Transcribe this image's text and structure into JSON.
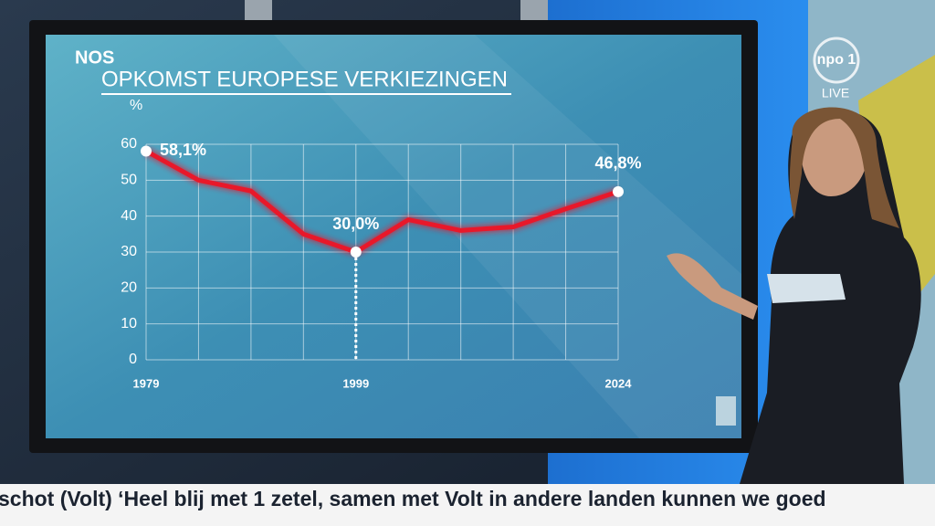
{
  "chart_data": {
    "type": "line",
    "brand": "NOS",
    "title": "OPKOMST EUROPESE VERKIEZINGEN",
    "y_label": "%",
    "x": [
      1979,
      1984,
      1989,
      1994,
      1999,
      2004,
      2009,
      2014,
      2019,
      2024
    ],
    "values": [
      58.1,
      50,
      47,
      35,
      30.0,
      39,
      36,
      37,
      42,
      46.8
    ],
    "value_labels": [
      "58,1%",
      null,
      null,
      null,
      "30,0%",
      null,
      null,
      null,
      null,
      "46,8%"
    ],
    "color": "#e8182a",
    "xlim": [
      1979,
      2024
    ],
    "xticks": [
      1979,
      1999,
      2024
    ],
    "ylim": [
      0,
      60
    ],
    "yticks": [
      0,
      10,
      20,
      30,
      40,
      50,
      60
    ],
    "grid": true
  },
  "broadcast": {
    "channel": "npo 1",
    "status": "LIVE",
    "ticker": "schot (Volt) ‘Heel blij met 1 zetel, samen met Volt in andere landen kunnen we goed"
  }
}
